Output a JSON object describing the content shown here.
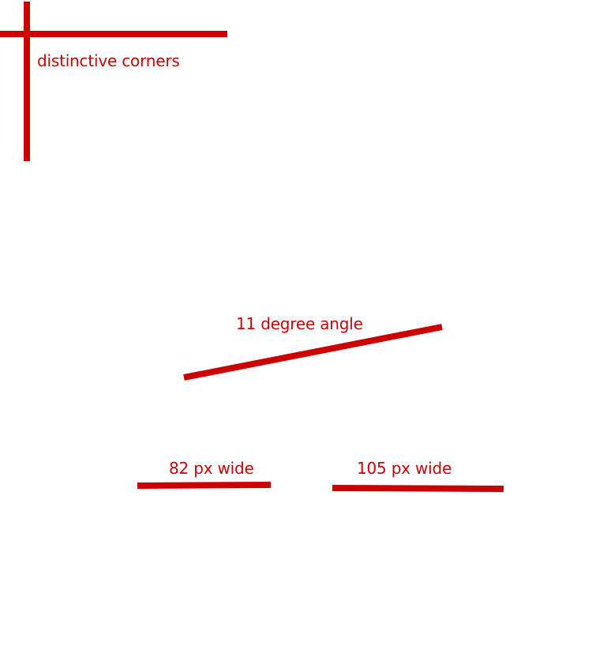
{
  "colors": {
    "accent": "#cc0000",
    "background": "#ffffff"
  },
  "labels": {
    "corners": "distinctive corners",
    "angle": "11 degree angle",
    "width_left": "82 px wide",
    "width_right": "105 px wide"
  }
}
